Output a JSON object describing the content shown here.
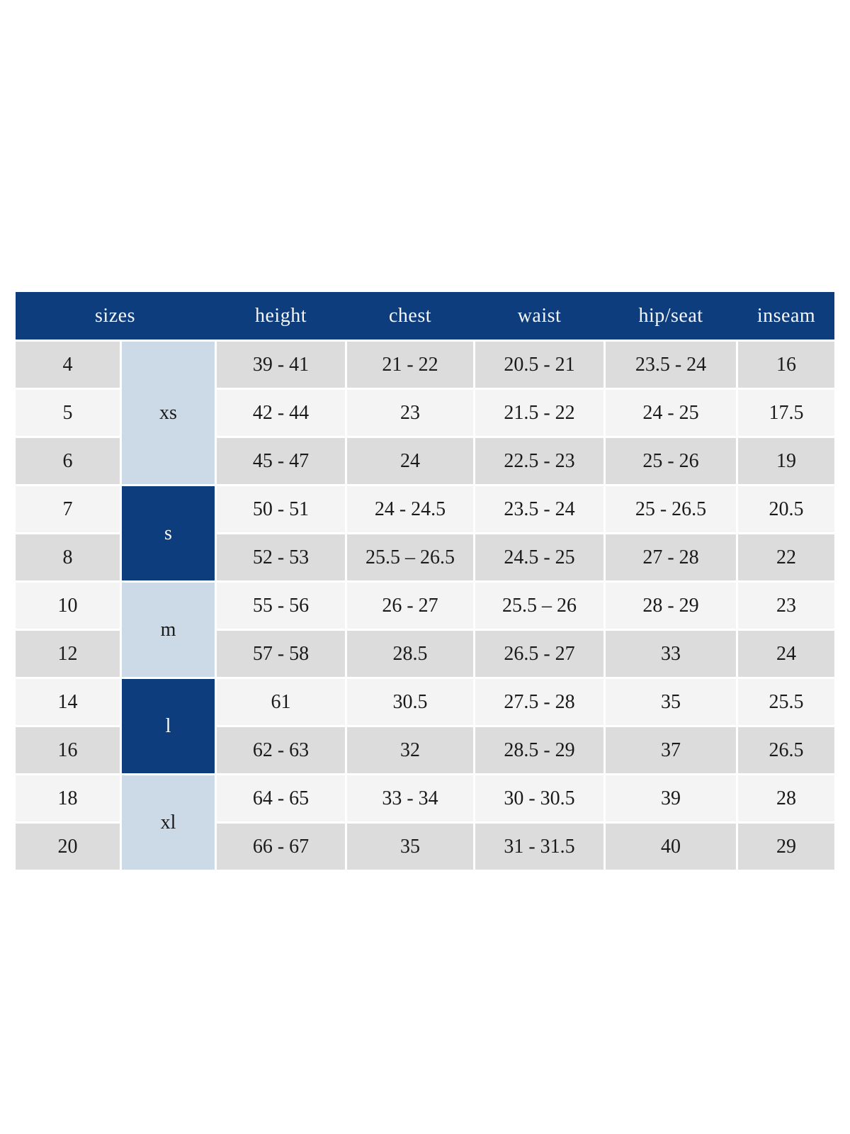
{
  "colors": {
    "header_navy": "#0e3d7d",
    "group_dark_navy": "#0e3d7d",
    "group_light_blue": "#ccd9e6",
    "row_gray": "#dcdcdc",
    "row_light": "#f4f4f4",
    "header_text": "#ffffff",
    "body_text": "#1a1a1a"
  },
  "chart_data": {
    "type": "table",
    "title": "sizes",
    "header": {
      "sizes": "sizes",
      "height": "height",
      "chest": "chest",
      "waist": "waist",
      "hip_seat": "hip/seat",
      "inseam": "inseam"
    },
    "groups": [
      {
        "label": "xs",
        "rows_spanned": 3,
        "highlight": "light-blue"
      },
      {
        "label": "s",
        "rows_spanned": 2,
        "highlight": "navy"
      },
      {
        "label": "m",
        "rows_spanned": 2,
        "highlight": "light-blue"
      },
      {
        "label": "l",
        "rows_spanned": 2,
        "highlight": "navy"
      },
      {
        "label": "xl",
        "rows_spanned": 2,
        "highlight": "light-blue"
      }
    ],
    "rows": [
      {
        "size": "4",
        "height": "39 - 41",
        "chest": "21 - 22",
        "waist": "20.5 - 21",
        "hip_seat": "23.5 - 24",
        "inseam": "16"
      },
      {
        "size": "5",
        "height": "42 - 44",
        "chest": "23",
        "waist": "21.5 - 22",
        "hip_seat": "24 - 25",
        "inseam": "17.5"
      },
      {
        "size": "6",
        "height": "45 - 47",
        "chest": "24",
        "waist": "22.5 - 23",
        "hip_seat": "25 - 26",
        "inseam": "19"
      },
      {
        "size": "7",
        "height": "50 - 51",
        "chest": "24 - 24.5",
        "waist": "23.5 - 24",
        "hip_seat": "25 - 26.5",
        "inseam": "20.5"
      },
      {
        "size": "8",
        "height": "52 - 53",
        "chest": "25.5 – 26.5",
        "waist": "24.5 - 25",
        "hip_seat": "27 - 28",
        "inseam": "22"
      },
      {
        "size": "10",
        "height": "55 - 56",
        "chest": "26 - 27",
        "waist": "25.5 – 26",
        "hip_seat": "28 - 29",
        "inseam": "23"
      },
      {
        "size": "12",
        "height": "57 - 58",
        "chest": "28.5",
        "waist": "26.5 - 27",
        "hip_seat": "33",
        "inseam": "24"
      },
      {
        "size": "14",
        "height": "61",
        "chest": "30.5",
        "waist": "27.5 - 28",
        "hip_seat": "35",
        "inseam": "25.5"
      },
      {
        "size": "16",
        "height": "62 - 63",
        "chest": "32",
        "waist": "28.5 - 29",
        "hip_seat": "37",
        "inseam": "26.5"
      },
      {
        "size": "18",
        "height": "64 - 65",
        "chest": "33 - 34",
        "waist": "30 - 30.5",
        "hip_seat": "39",
        "inseam": "28"
      },
      {
        "size": "20",
        "height": "66 - 67",
        "chest": "35",
        "waist": "31 - 31.5",
        "hip_seat": "40",
        "inseam": "29"
      }
    ]
  }
}
